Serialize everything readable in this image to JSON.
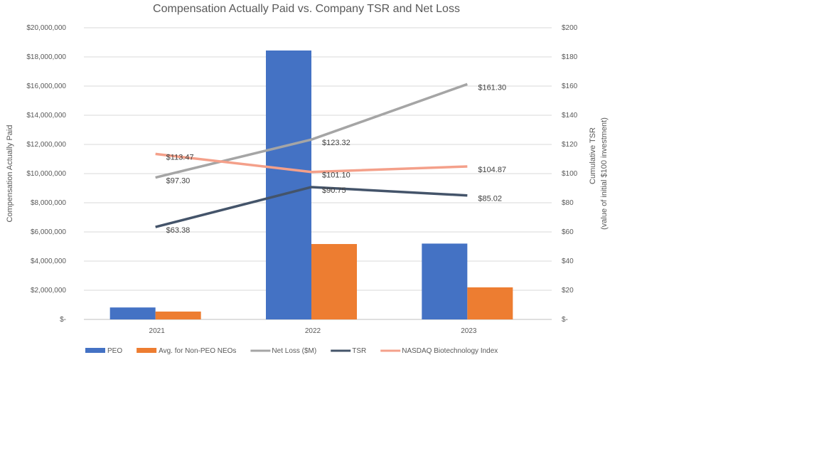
{
  "chart_data": {
    "type": "bar",
    "title": "Compensation Actually Paid vs. Company TSR and Net Loss",
    "categories": [
      "2021",
      "2022",
      "2023"
    ],
    "ylabel_left": "Compensation Actually Paid",
    "ylabel_right": [
      "Cumulative TSR",
      "(value of initial $100 investment)"
    ],
    "ylim_left": [
      0,
      20000000
    ],
    "ylim_right": [
      0,
      200
    ],
    "left_ticks": [
      "$-",
      "$2,000,000",
      "$4,000,000",
      "$6,000,000",
      "$8,000,000",
      "$10,000,000",
      "$12,000,000",
      "$14,000,000",
      "$16,000,000",
      "$18,000,000",
      "$20,000,000"
    ],
    "right_ticks": [
      "$-",
      "$20",
      "$40",
      "$60",
      "$80",
      "$100",
      "$120",
      "$140",
      "$160",
      "$180",
      "$200"
    ],
    "grid": true,
    "legend_position": "bottom",
    "bar_series": [
      {
        "name": "PEO",
        "color": "#4472C4",
        "values": [
          820000,
          18440000,
          5200000
        ]
      },
      {
        "name": "Avg. for Non-PEO NEOs",
        "color": "#ED7D31",
        "values": [
          540000,
          5170000,
          2200000
        ]
      }
    ],
    "line_series": [
      {
        "name": "Net Loss ($M)",
        "color": "#A5A5A5",
        "values": [
          97.3,
          123.32,
          161.3
        ],
        "labels": [
          "$97.30",
          "$123.32",
          "$161.30"
        ]
      },
      {
        "name": "TSR",
        "color": "#44546A",
        "values": [
          63.38,
          90.75,
          85.02
        ],
        "labels": [
          "$63.38",
          "$90.75",
          "$85.02"
        ]
      },
      {
        "name": "NASDAQ Biotechnology Index",
        "color": "#F4A08A",
        "values": [
          113.47,
          101.1,
          104.87
        ],
        "labels": [
          "$113.47",
          "$101.10",
          "$104.87"
        ]
      }
    ]
  }
}
